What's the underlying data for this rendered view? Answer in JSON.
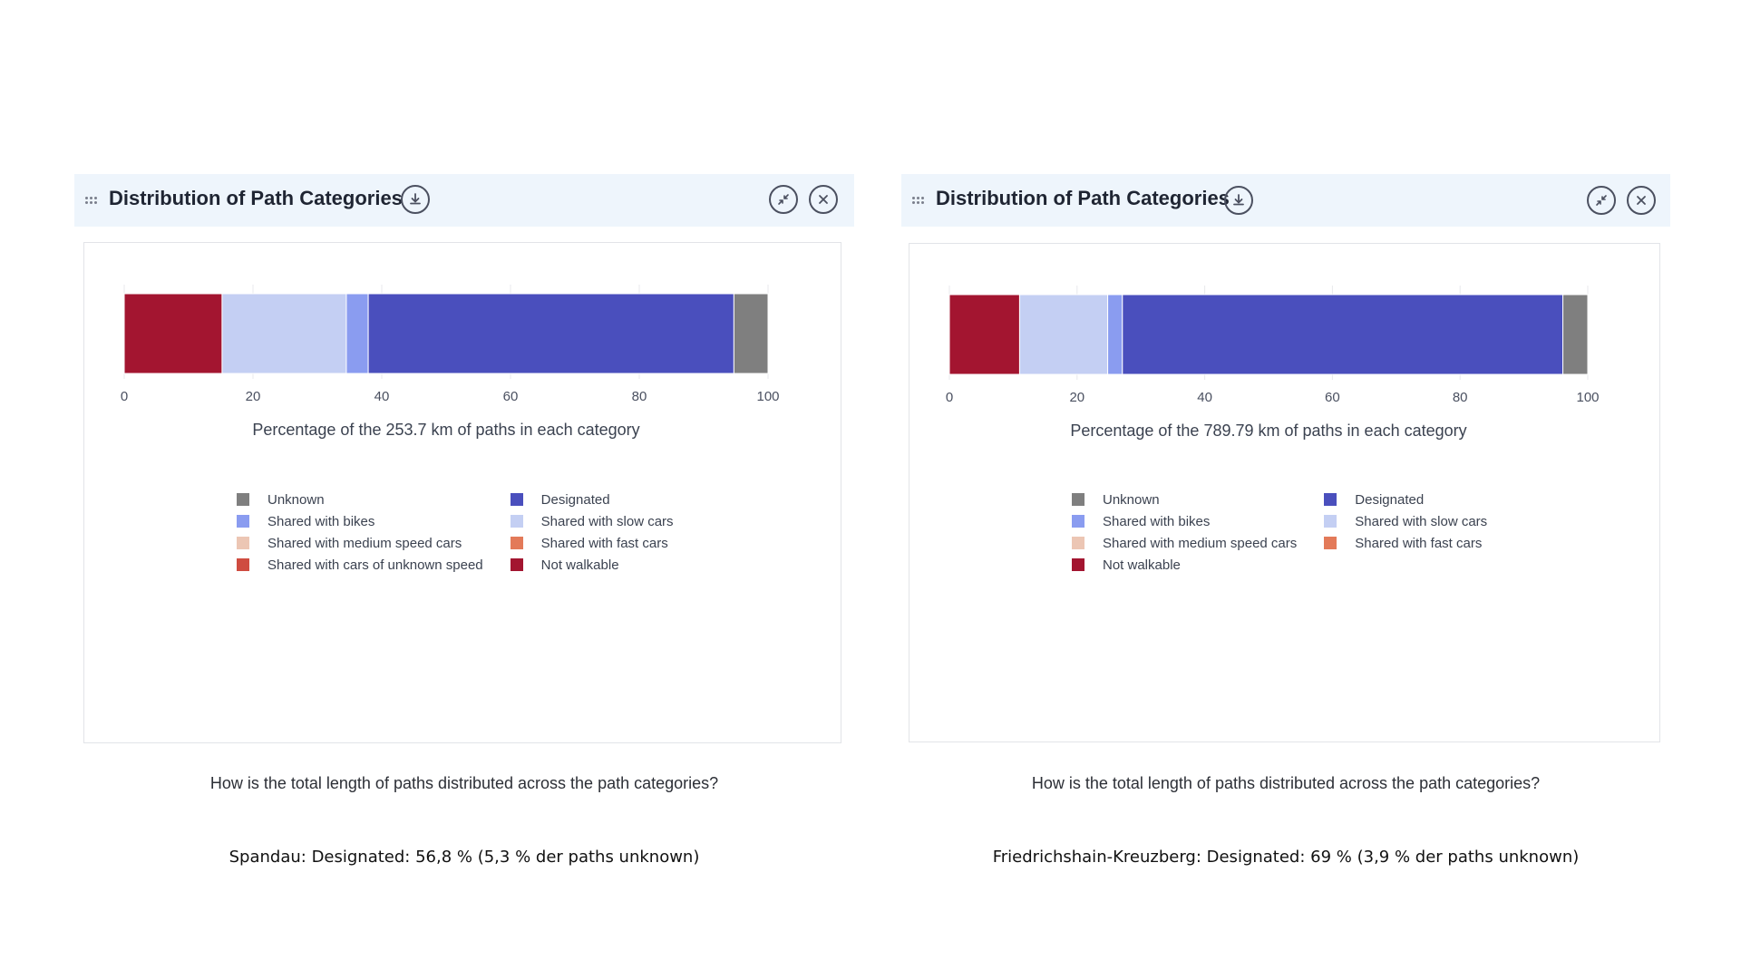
{
  "panels": [
    {
      "header": {
        "title": "Distribution of Path Categories"
      },
      "question": "How is the total length of paths distributed across the path categories?",
      "caption": "Spandau: Designated: 56,8 % (5,3 % der paths unknown)",
      "legend": [
        {
          "label": "Unknown",
          "color": "#7f7f7f"
        },
        {
          "label": "Designated",
          "color": "#4a4fbd"
        },
        {
          "label": "Shared with bikes",
          "color": "#8a9cf0"
        },
        {
          "label": "Shared with slow cars",
          "color": "#c4cff3"
        },
        {
          "label": "Shared with medium speed cars",
          "color": "#ecc6b4"
        },
        {
          "label": "Shared with fast cars",
          "color": "#e37a59"
        },
        {
          "label": "Shared with cars of unknown speed",
          "color": "#cf4c40"
        },
        {
          "label": "Not walkable",
          "color": "#a31530"
        }
      ]
    },
    {
      "header": {
        "title": "Distribution of Path Categories"
      },
      "question": "How is the total length of paths distributed across the path categories?",
      "caption": "Friedrichshain-Kreuzberg: Designated: 69 % (3,9 % der paths unknown)",
      "legend": [
        {
          "label": "Unknown",
          "color": "#7f7f7f"
        },
        {
          "label": "Designated",
          "color": "#4a4fbd"
        },
        {
          "label": "Shared with bikes",
          "color": "#8a9cf0"
        },
        {
          "label": "Shared with slow cars",
          "color": "#c4cff3"
        },
        {
          "label": "Shared with medium speed cars",
          "color": "#ecc6b4"
        },
        {
          "label": "Shared with fast cars",
          "color": "#e37a59"
        },
        {
          "label": "Not walkable",
          "color": "#a31530"
        }
      ]
    }
  ],
  "chart_data": [
    {
      "type": "bar",
      "orientation": "horizontal",
      "stacked": true,
      "xlabel": "Percentage of the 253.7 km of paths in each category",
      "xlim": [
        0,
        100
      ],
      "xticks": [
        0,
        20,
        40,
        60,
        80,
        100
      ],
      "grid": true,
      "legend_position": "bottom",
      "segments": [
        {
          "name": "Not walkable",
          "value": 15.2,
          "color": "#a31530"
        },
        {
          "name": "Shared with slow cars",
          "value": 19.3,
          "color": "#c4cff3"
        },
        {
          "name": "Shared with bikes",
          "value": 3.4,
          "color": "#8a9cf0"
        },
        {
          "name": "Designated",
          "value": 56.8,
          "color": "#4a4fbd"
        },
        {
          "name": "Unknown",
          "value": 5.3,
          "color": "#7f7f7f"
        }
      ]
    },
    {
      "type": "bar",
      "orientation": "horizontal",
      "stacked": true,
      "xlabel": "Percentage of the 789.79 km of paths in each category",
      "xlim": [
        0,
        100
      ],
      "xticks": [
        0,
        20,
        40,
        60,
        80,
        100
      ],
      "grid": true,
      "legend_position": "bottom",
      "segments": [
        {
          "name": "Not walkable",
          "value": 11.0,
          "color": "#a31530"
        },
        {
          "name": "Shared with slow cars",
          "value": 13.8,
          "color": "#c4cff3"
        },
        {
          "name": "Shared with bikes",
          "value": 2.3,
          "color": "#8a9cf0"
        },
        {
          "name": "Designated",
          "value": 69.0,
          "color": "#4a4fbd"
        },
        {
          "name": "Unknown",
          "value": 3.9,
          "color": "#7f7f7f"
        }
      ]
    }
  ]
}
